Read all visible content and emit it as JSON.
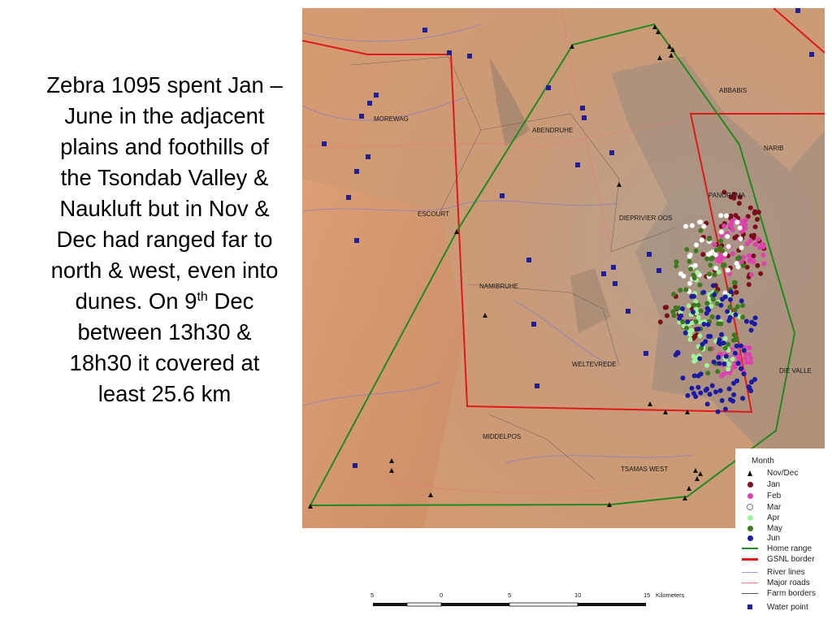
{
  "caption": {
    "line1": "Zebra 1095 spent Jan – June in the adjacent plains and foothills of the Tsondab Valley & Naukluft but in Nov & Dec had ranged far to north & west, even into dunes. On 9",
    "sup": "th",
    "line2": " Dec between 13h30 & 18h30 it covered at least 25.6 km"
  },
  "map": {
    "farm_labels": [
      "MOREWAG",
      "ABENDRUHE",
      "ABBABIS",
      "NARIB",
      "PANORAMA",
      "ESCOURT",
      "DIEPRIVIER OOS",
      "NAMIBRUHE",
      "WELTEVREDE",
      "DIE VALLE",
      "MIDDELPOS",
      "TSAMAS WEST"
    ],
    "colors": {
      "home_range": "#1f8a1f",
      "gsnl_border": "#e01818",
      "river": "#7b7bd6",
      "road": "#e87a7a",
      "farm": "#555555",
      "water_point": "#1f1f9a",
      "nov_dec": "#111111",
      "jan": "#7a0d1a",
      "feb": "#e040b0",
      "mar": "#ffffff",
      "apr": "#9ff59a",
      "may": "#3c7a1e",
      "jun": "#1a1aa8"
    }
  },
  "legend": {
    "title": "Month",
    "items": [
      {
        "label": "Nov/Dec",
        "symbol": "triangle",
        "color": "#111111",
        "icon": "triangle-icon"
      },
      {
        "label": "Jan",
        "symbol": "dot",
        "color": "#7a0d1a",
        "icon": "jan-dot-icon"
      },
      {
        "label": "Feb",
        "symbol": "dot",
        "color": "#e040b0",
        "icon": "feb-dot-icon"
      },
      {
        "label": "Mar",
        "symbol": "ring",
        "color": "#ffffff",
        "icon": "mar-ring-icon"
      },
      {
        "label": "Apr",
        "symbol": "dot",
        "color": "#9ff59a",
        "icon": "apr-dot-icon"
      },
      {
        "label": "May",
        "symbol": "dot",
        "color": "#3c7a1e",
        "icon": "may-dot-icon"
      },
      {
        "label": "Jun",
        "symbol": "dot",
        "color": "#1a1aa8",
        "icon": "jun-dot-icon"
      },
      {
        "label": "Home range",
        "symbol": "line",
        "color": "#1f8a1f",
        "icon": "home-range-line-icon"
      },
      {
        "label": "GSNL border",
        "symbol": "thick-line",
        "color": "#e01818",
        "icon": "gsnl-line-icon"
      },
      {
        "label": "River lines",
        "symbol": "thin-line",
        "color": "#9a9ad8",
        "icon": "river-line-icon"
      },
      {
        "label": "Major roads",
        "symbol": "thin-line",
        "color": "#e87a7a",
        "icon": "road-line-icon"
      },
      {
        "label": "Farm borders",
        "symbol": "thin-line",
        "color": "#555555",
        "icon": "farm-line-icon"
      },
      {
        "label": "Water point",
        "symbol": "square",
        "color": "#1f1f9a",
        "icon": "water-point-icon"
      }
    ]
  },
  "scale_bar": {
    "labels": [
      "5",
      "0",
      "5",
      "10",
      "15"
    ],
    "unit": "Kilometers"
  }
}
